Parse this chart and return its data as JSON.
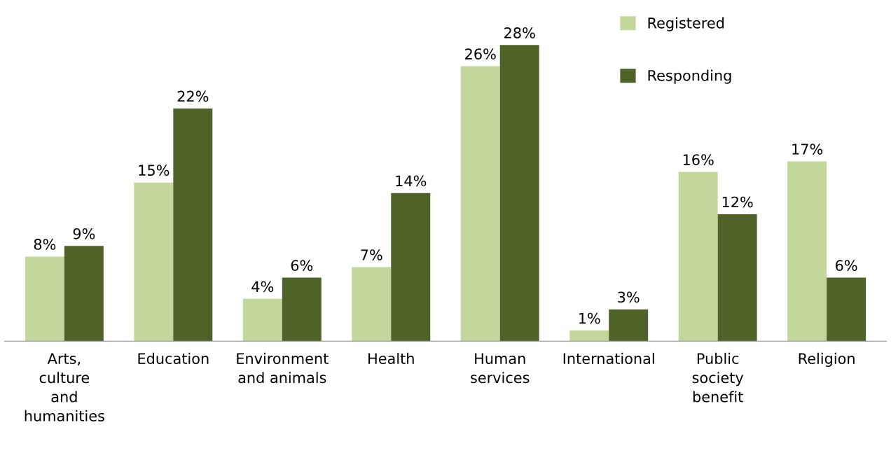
{
  "chart_data": {
    "type": "bar",
    "categories": [
      "Arts,\nculture\nand\nhumanities",
      "Education",
      "Environment\nand animals",
      "Health",
      "Human\nservices",
      "International",
      "Public\nsociety\nbenefit",
      "Religion"
    ],
    "series": [
      {
        "name": "Registered",
        "color": "#c3d69b",
        "values": [
          8,
          15,
          4,
          7,
          26,
          1,
          16,
          17
        ],
        "value_labels": [
          "8%",
          "15%",
          "4%",
          "7%",
          "26%",
          "1%",
          "16%",
          "17%"
        ]
      },
      {
        "name": "Responding",
        "color": "#4f6228",
        "values": [
          9,
          22,
          6,
          14,
          28,
          3,
          12,
          6
        ],
        "value_labels": [
          "9%",
          "22%",
          "6%",
          "14%",
          "28%",
          "3%",
          "12%",
          "6%"
        ]
      }
    ],
    "legend": "top right",
    "grid": false
  }
}
